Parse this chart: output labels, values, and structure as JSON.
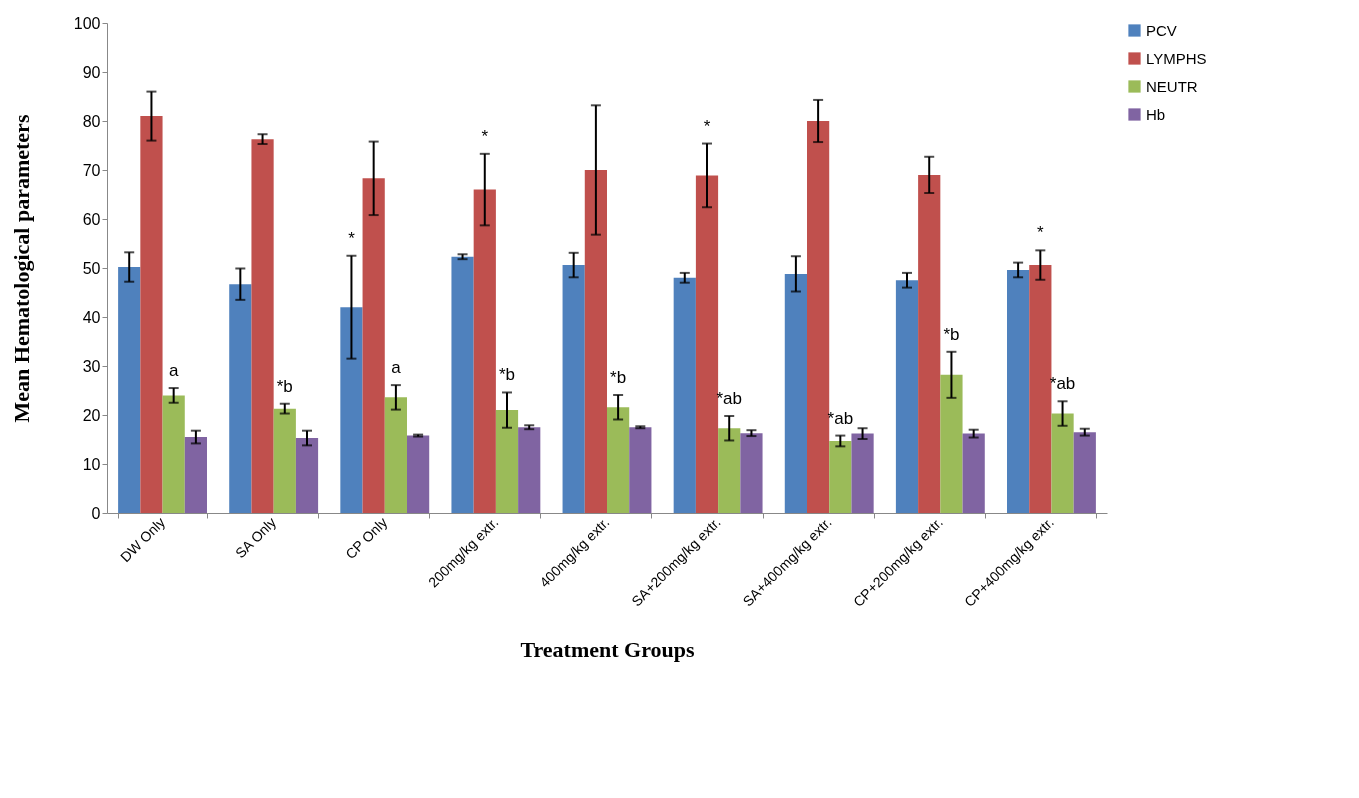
{
  "chart_data": {
    "type": "bar",
    "xlabel": "Treatment Groups",
    "ylabel": "Mean Hematological parameters",
    "categories": [
      "DW Only",
      "SA Only",
      "CP Only",
      "200mg/kg extr.",
      "400mg/kg extr.",
      "SA+200mg/kg extr.",
      "SA+400mg/kg extr.",
      "CP+200mg/kg extr.",
      "CP+400mg/kg extr."
    ],
    "series": [
      {
        "name": "PCV",
        "color": "#4f81bd",
        "values": [
          50.2,
          46.7,
          42,
          52.3,
          50.6,
          48,
          48.8,
          47.5,
          49.6
        ],
        "errors": [
          3,
          3.2,
          10.5,
          0.5,
          2.5,
          1,
          3.6,
          1.5,
          1.5
        ]
      },
      {
        "name": "LYMPHS",
        "color": "#c0504d",
        "values": [
          81,
          76.3,
          68.3,
          66,
          70,
          68.9,
          80,
          69,
          50.6
        ],
        "errors": [
          5,
          1,
          7.5,
          7.3,
          13.2,
          6.5,
          4.3,
          3.7,
          3
        ]
      },
      {
        "name": "NEUTR",
        "color": "#9bbb59",
        "values": [
          24,
          21.3,
          23.6,
          21,
          21.6,
          17.3,
          14.7,
          28.2,
          20.3
        ],
        "errors": [
          1.5,
          1,
          2.5,
          3.6,
          2.5,
          2.5,
          1.1,
          4.7,
          2.5
        ]
      },
      {
        "name": "Hb",
        "color": "#8064a2",
        "values": [
          15.5,
          15.3,
          15.8,
          17.5,
          17.5,
          16.3,
          16.2,
          16.2,
          16.5
        ],
        "errors": [
          1.3,
          1.5,
          0.2,
          0.4,
          0.2,
          0.6,
          1.1,
          0.8,
          0.7
        ]
      }
    ],
    "ylim": [
      0,
      100
    ],
    "yticks": [
      0,
      10,
      20,
      30,
      40,
      50,
      60,
      70,
      80,
      90,
      100
    ],
    "grid": false,
    "legend": "right",
    "annotations": [
      {
        "text": "a",
        "x": "DW Only",
        "y": 24
      },
      {
        "text": "*b",
        "x": "SA Only",
        "y": 21.3
      },
      {
        "text": "*",
        "x": "CP Only",
        "y": 52.5
      },
      {
        "text": "a",
        "x": "CP Only",
        "y": 23.6
      },
      {
        "text": "*",
        "x": "200mg/kg extr.",
        "y": 66
      },
      {
        "text": "*b",
        "x": "200mg/kg extr.",
        "y": 21
      },
      {
        "text": "*b",
        "x": "400mg/kg extr.",
        "y": 21.6
      },
      {
        "text": "*",
        "x": "SA+200mg/kg extr.",
        "y": 68.9
      },
      {
        "text": "*ab",
        "x": "SA+200mg/kg extr.",
        "y": 17.3
      },
      {
        "text": "*ab",
        "x": "SA+400mg/kg extr.",
        "y": 14.7
      },
      {
        "text": "*b",
        "x": "CP+200mg/kg extr.",
        "y": 28.2
      },
      {
        "text": "*",
        "x": "CP+400mg/kg extr.",
        "y": 50.6
      },
      {
        "text": "*ab",
        "x": "CP+400mg/kg extr.",
        "y": 20.3
      }
    ]
  }
}
